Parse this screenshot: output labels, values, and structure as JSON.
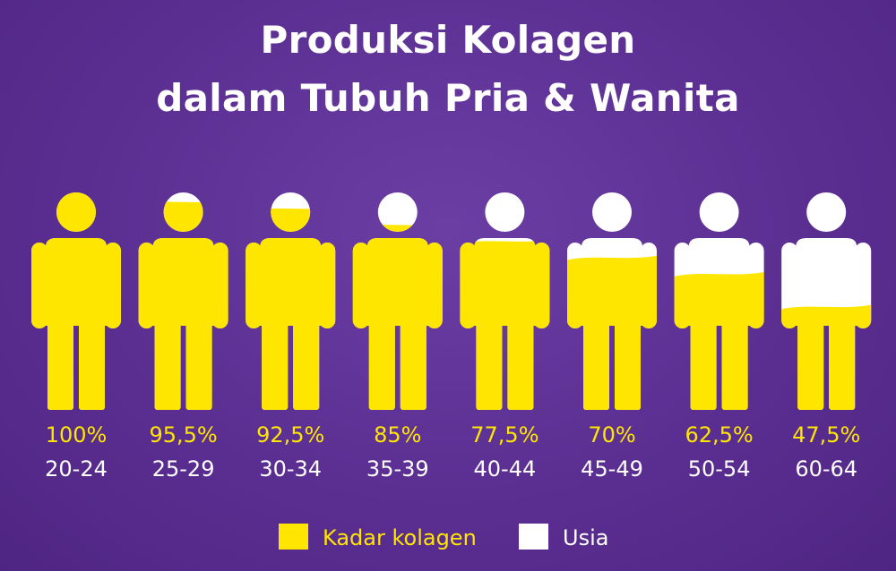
{
  "chart_data": {
    "type": "pictograph",
    "title_lines": [
      "Produksi Kolagen",
      "dalam Tubuh Pria & Wanita"
    ],
    "categories": [
      "20-24",
      "25-29",
      "30-34",
      "35-39",
      "40-44",
      "45-49",
      "50-54",
      "60-64"
    ],
    "value_labels": [
      "100%",
      "95,5%",
      "92,5%",
      "85%",
      "77,5%",
      "70%",
      "62,5%",
      "47,5%"
    ],
    "values": [
      100,
      95.5,
      92.5,
      85,
      77.5,
      70,
      62.5,
      47.5
    ],
    "legend": [
      {
        "label": "Kadar kolagen",
        "color": "#ffe600"
      },
      {
        "label": "Usia",
        "color": "#ffffff"
      }
    ]
  },
  "colors": {
    "fill": "#ffe600",
    "empty": "#ffffff",
    "background": "#5b2f92"
  }
}
